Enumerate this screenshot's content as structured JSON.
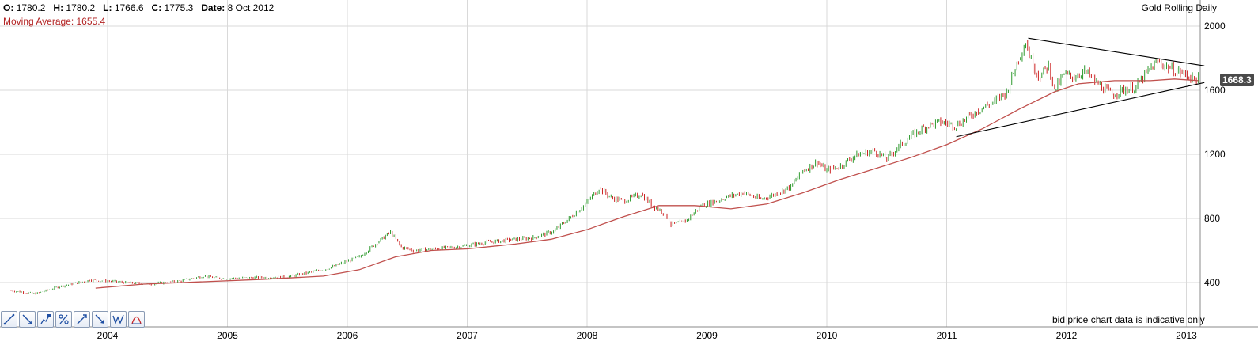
{
  "header": {
    "o_label": "O:",
    "o_value": "1780.2",
    "h_label": "H:",
    "h_value": "1780.2",
    "l_label": "L:",
    "l_value": "1766.6",
    "c_label": "C:",
    "c_value": "1775.3",
    "date_label": "Date:",
    "date_value": "8 Oct 2012",
    "ma_text": "Moving Average: 1655.4",
    "title": "Gold Rolling Daily",
    "note": "bid price chart data is indicative only",
    "current_price": "1668.3"
  },
  "colors": {
    "up": "#2e9a2e",
    "down": "#cc2222",
    "ma": "#c0504d",
    "trend": "#000000",
    "grid": "#d9d9d9"
  },
  "toolbar": {
    "tools": [
      "trend-line-icon",
      "down-trend-icon",
      "price-label-icon",
      "percent-icon",
      "up-trend-icon",
      "arrow-down-icon",
      "wave-icon",
      "arc-icon"
    ]
  },
  "chart_data": {
    "type": "line",
    "title": "Gold Rolling Daily",
    "x_ticks": [
      "2004",
      "2005",
      "2006",
      "2007",
      "2008",
      "2009",
      "2010",
      "2011",
      "2012",
      "2013"
    ],
    "y_ticks": [
      400,
      800,
      1200,
      1600,
      2000
    ],
    "ylim": [
      190,
      2040
    ],
    "xlim": [
      2003.18,
      2013.2
    ],
    "grid": true,
    "series": [
      {
        "style": "candlestick",
        "x": [
          2003.18,
          2003.4,
          2003.6,
          2003.85,
          2004.0,
          2004.15,
          2004.35,
          2004.6,
          2004.8,
          2004.95,
          2005.2,
          2005.5,
          2005.7,
          2005.85,
          2005.95,
          2006.1,
          2006.25,
          2006.36,
          2006.45,
          2006.55,
          2006.75,
          2006.95,
          2007.15,
          2007.35,
          2007.55,
          2007.72,
          2007.85,
          2008.0,
          2008.1,
          2008.2,
          2008.3,
          2008.45,
          2008.55,
          2008.65,
          2008.7,
          2008.82,
          2008.95,
          2009.05,
          2009.15,
          2009.3,
          2009.45,
          2009.6,
          2009.7,
          2009.8,
          2009.92,
          2010.0,
          2010.1,
          2010.25,
          2010.4,
          2010.5,
          2010.6,
          2010.75,
          2010.85,
          2010.95,
          2011.08,
          2011.25,
          2011.4,
          2011.5,
          2011.6,
          2011.66,
          2011.72,
          2011.78,
          2011.85,
          2011.9,
          2011.98,
          2012.05,
          2012.15,
          2012.25,
          2012.38,
          2012.45,
          2012.58,
          2012.68,
          2012.76,
          2012.85,
          2012.95,
          2013.05,
          2013.1
        ],
        "values": [
          350,
          330,
          375,
          415,
          410,
          400,
          390,
          410,
          440,
          425,
          430,
          435,
          465,
          490,
          520,
          560,
          650,
          715,
          620,
          600,
          610,
          625,
          650,
          665,
          680,
          720,
          800,
          900,
          990,
          930,
          910,
          950,
          880,
          830,
          760,
          780,
          880,
          900,
          930,
          960,
          920,
          960,
          1000,
          1100,
          1150,
          1100,
          1120,
          1200,
          1220,
          1170,
          1250,
          1340,
          1380,
          1400,
          1380,
          1470,
          1530,
          1590,
          1800,
          1900,
          1750,
          1680,
          1760,
          1600,
          1700,
          1680,
          1720,
          1650,
          1570,
          1600,
          1620,
          1720,
          1780,
          1740,
          1710,
          1680,
          1670
        ]
      },
      {
        "name": "Moving Average",
        "style": "line",
        "x": [
          2003.9,
          2004.3,
          2004.8,
          2005.3,
          2005.8,
          2006.1,
          2006.4,
          2006.7,
          2007.0,
          2007.4,
          2007.7,
          2008.0,
          2008.3,
          2008.6,
          2008.9,
          2009.2,
          2009.5,
          2009.8,
          2010.1,
          2010.4,
          2010.7,
          2011.0,
          2011.3,
          2011.6,
          2011.9,
          2012.1,
          2012.4,
          2012.7,
          2012.9,
          2013.1
        ],
        "values": [
          365,
          390,
          405,
          420,
          440,
          480,
          560,
          600,
          610,
          640,
          670,
          730,
          810,
          880,
          880,
          860,
          890,
          960,
          1040,
          1110,
          1180,
          1260,
          1360,
          1480,
          1590,
          1640,
          1660,
          1660,
          1670,
          1660
        ]
      }
    ],
    "annotations": [
      {
        "type": "trendline",
        "from": [
          2011.68,
          1925
        ],
        "to": [
          2013.15,
          1752
        ]
      },
      {
        "type": "trendline",
        "from": [
          2011.08,
          1310
        ],
        "to": [
          2013.15,
          1648
        ]
      }
    ]
  }
}
